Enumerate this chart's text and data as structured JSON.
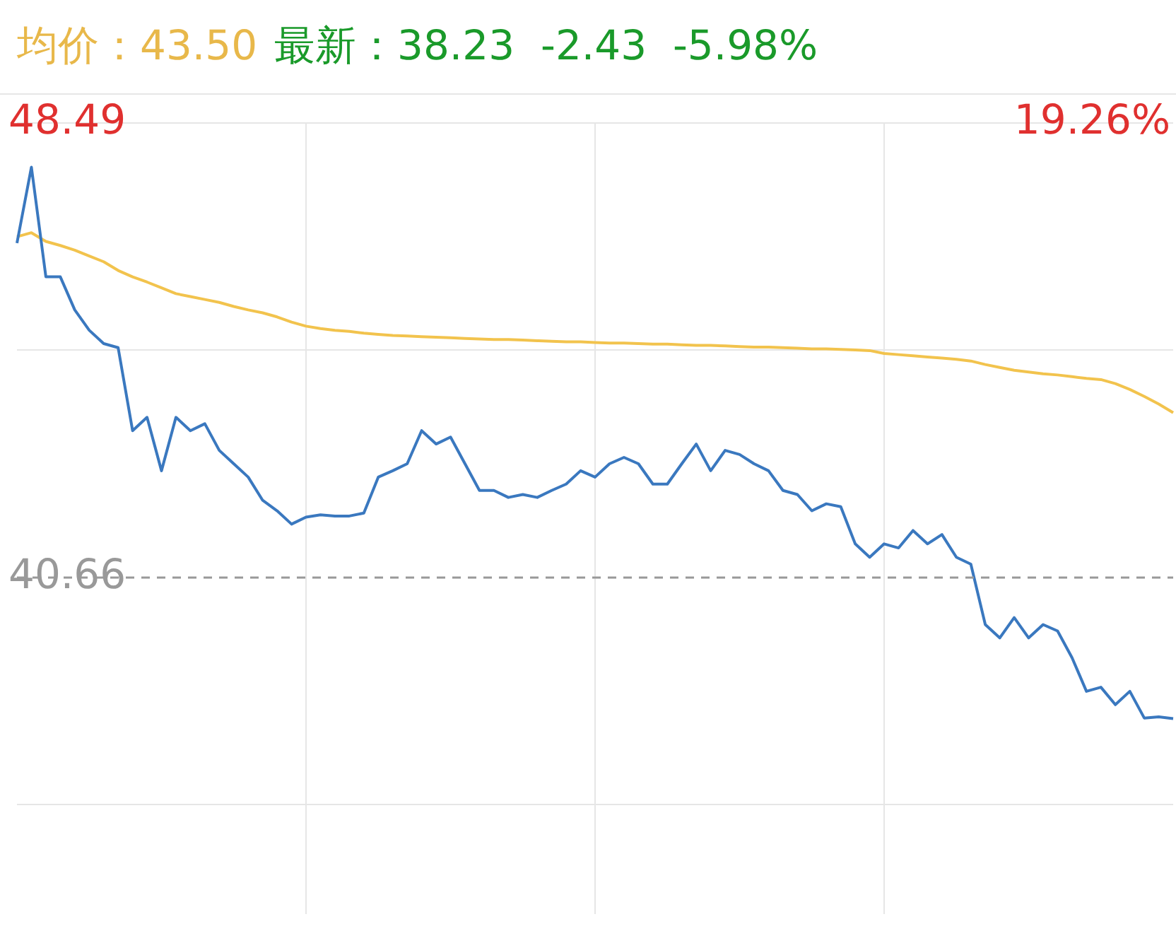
{
  "chart_data": {
    "type": "line",
    "title": "均价：43.50",
    "subtitle": "最新：38.23  -2.43  -5.98%",
    "categories": [
      null,
      null,
      null,
      null,
      null,
      null,
      null,
      null,
      null,
      null,
      null,
      null,
      null,
      null,
      null,
      null,
      null,
      null,
      null,
      null,
      null,
      null,
      null,
      null,
      null,
      null,
      null,
      null,
      null,
      null,
      null,
      null,
      null,
      null,
      null,
      null,
      null,
      null,
      null,
      null,
      null,
      null,
      null,
      null,
      null,
      null,
      null,
      null,
      null,
      null,
      null,
      null,
      null,
      null,
      null,
      null,
      null,
      null,
      null,
      null,
      null,
      null,
      null,
      null,
      null,
      null,
      null,
      null,
      null,
      null,
      null,
      null,
      null,
      null,
      null,
      null,
      null,
      null,
      null,
      null,
      null
    ],
    "series": [
      {
        "color": "#3a78bf",
        "values": [
          46.42,
          47.73,
          45.84,
          45.84,
          45.27,
          44.92,
          44.69,
          44.62,
          43.19,
          43.42,
          42.5,
          43.42,
          43.19,
          43.31,
          42.85,
          42.62,
          42.39,
          41.99,
          41.81,
          41.58,
          41.7,
          41.74,
          41.72,
          41.72,
          41.77,
          42.39,
          42.5,
          42.62,
          43.19,
          42.96,
          43.08,
          42.62,
          42.16,
          42.16,
          42.04,
          42.09,
          42.04,
          42.16,
          42.27,
          42.5,
          42.39,
          42.62,
          42.73,
          42.62,
          42.27,
          42.27,
          42.62,
          42.96,
          42.5,
          42.85,
          42.78,
          42.62,
          42.5,
          42.16,
          42.09,
          41.81,
          41.93,
          41.88,
          41.24,
          41.01,
          41.24,
          41.17,
          41.47,
          41.24,
          41.4,
          41.01,
          40.89,
          39.85,
          39.62,
          39.97,
          39.62,
          39.85,
          39.74,
          39.28,
          38.7,
          38.77,
          38.47,
          38.7,
          38.24,
          38.26,
          38.23
        ]
      },
      {
        "color": "#f2c34d",
        "values": [
          46.53,
          46.6,
          46.45,
          46.38,
          46.3,
          46.2,
          46.1,
          45.95,
          45.84,
          45.75,
          45.65,
          45.55,
          45.5,
          45.45,
          45.4,
          45.33,
          45.27,
          45.22,
          45.15,
          45.06,
          44.99,
          44.95,
          44.92,
          44.9,
          44.87,
          44.85,
          44.83,
          44.82,
          44.81,
          44.8,
          44.79,
          44.78,
          44.77,
          44.76,
          44.76,
          44.75,
          44.74,
          44.73,
          44.72,
          44.72,
          44.71,
          44.7,
          44.7,
          44.69,
          44.68,
          44.68,
          44.67,
          44.66,
          44.66,
          44.65,
          44.64,
          44.63,
          44.63,
          44.62,
          44.61,
          44.6,
          44.6,
          44.59,
          44.58,
          44.57,
          44.52,
          44.5,
          44.48,
          44.46,
          44.44,
          44.42,
          44.39,
          44.33,
          44.28,
          44.23,
          44.2,
          44.17,
          44.15,
          44.12,
          44.09,
          44.07,
          44.0,
          43.9,
          43.78,
          43.65,
          43.5
        ]
      }
    ],
    "ylim": [
      34.86,
      48.49
    ],
    "yticks": [
      48.49,
      {
        "value": 44.575,
        "label": null
      },
      40.66,
      {
        "value": 36.745,
        "label": null
      }
    ],
    "annotations": [
      "19.26%"
    ],
    "ref_lines": [
      {
        "axis": "y",
        "value": 40.66,
        "label": null,
        "color": "#999999",
        "line_style": "dashed"
      }
    ],
    "grid": true,
    "legend": false,
    "marker": "none",
    "line_style": "solid",
    "tick_labels": "y"
  }
}
